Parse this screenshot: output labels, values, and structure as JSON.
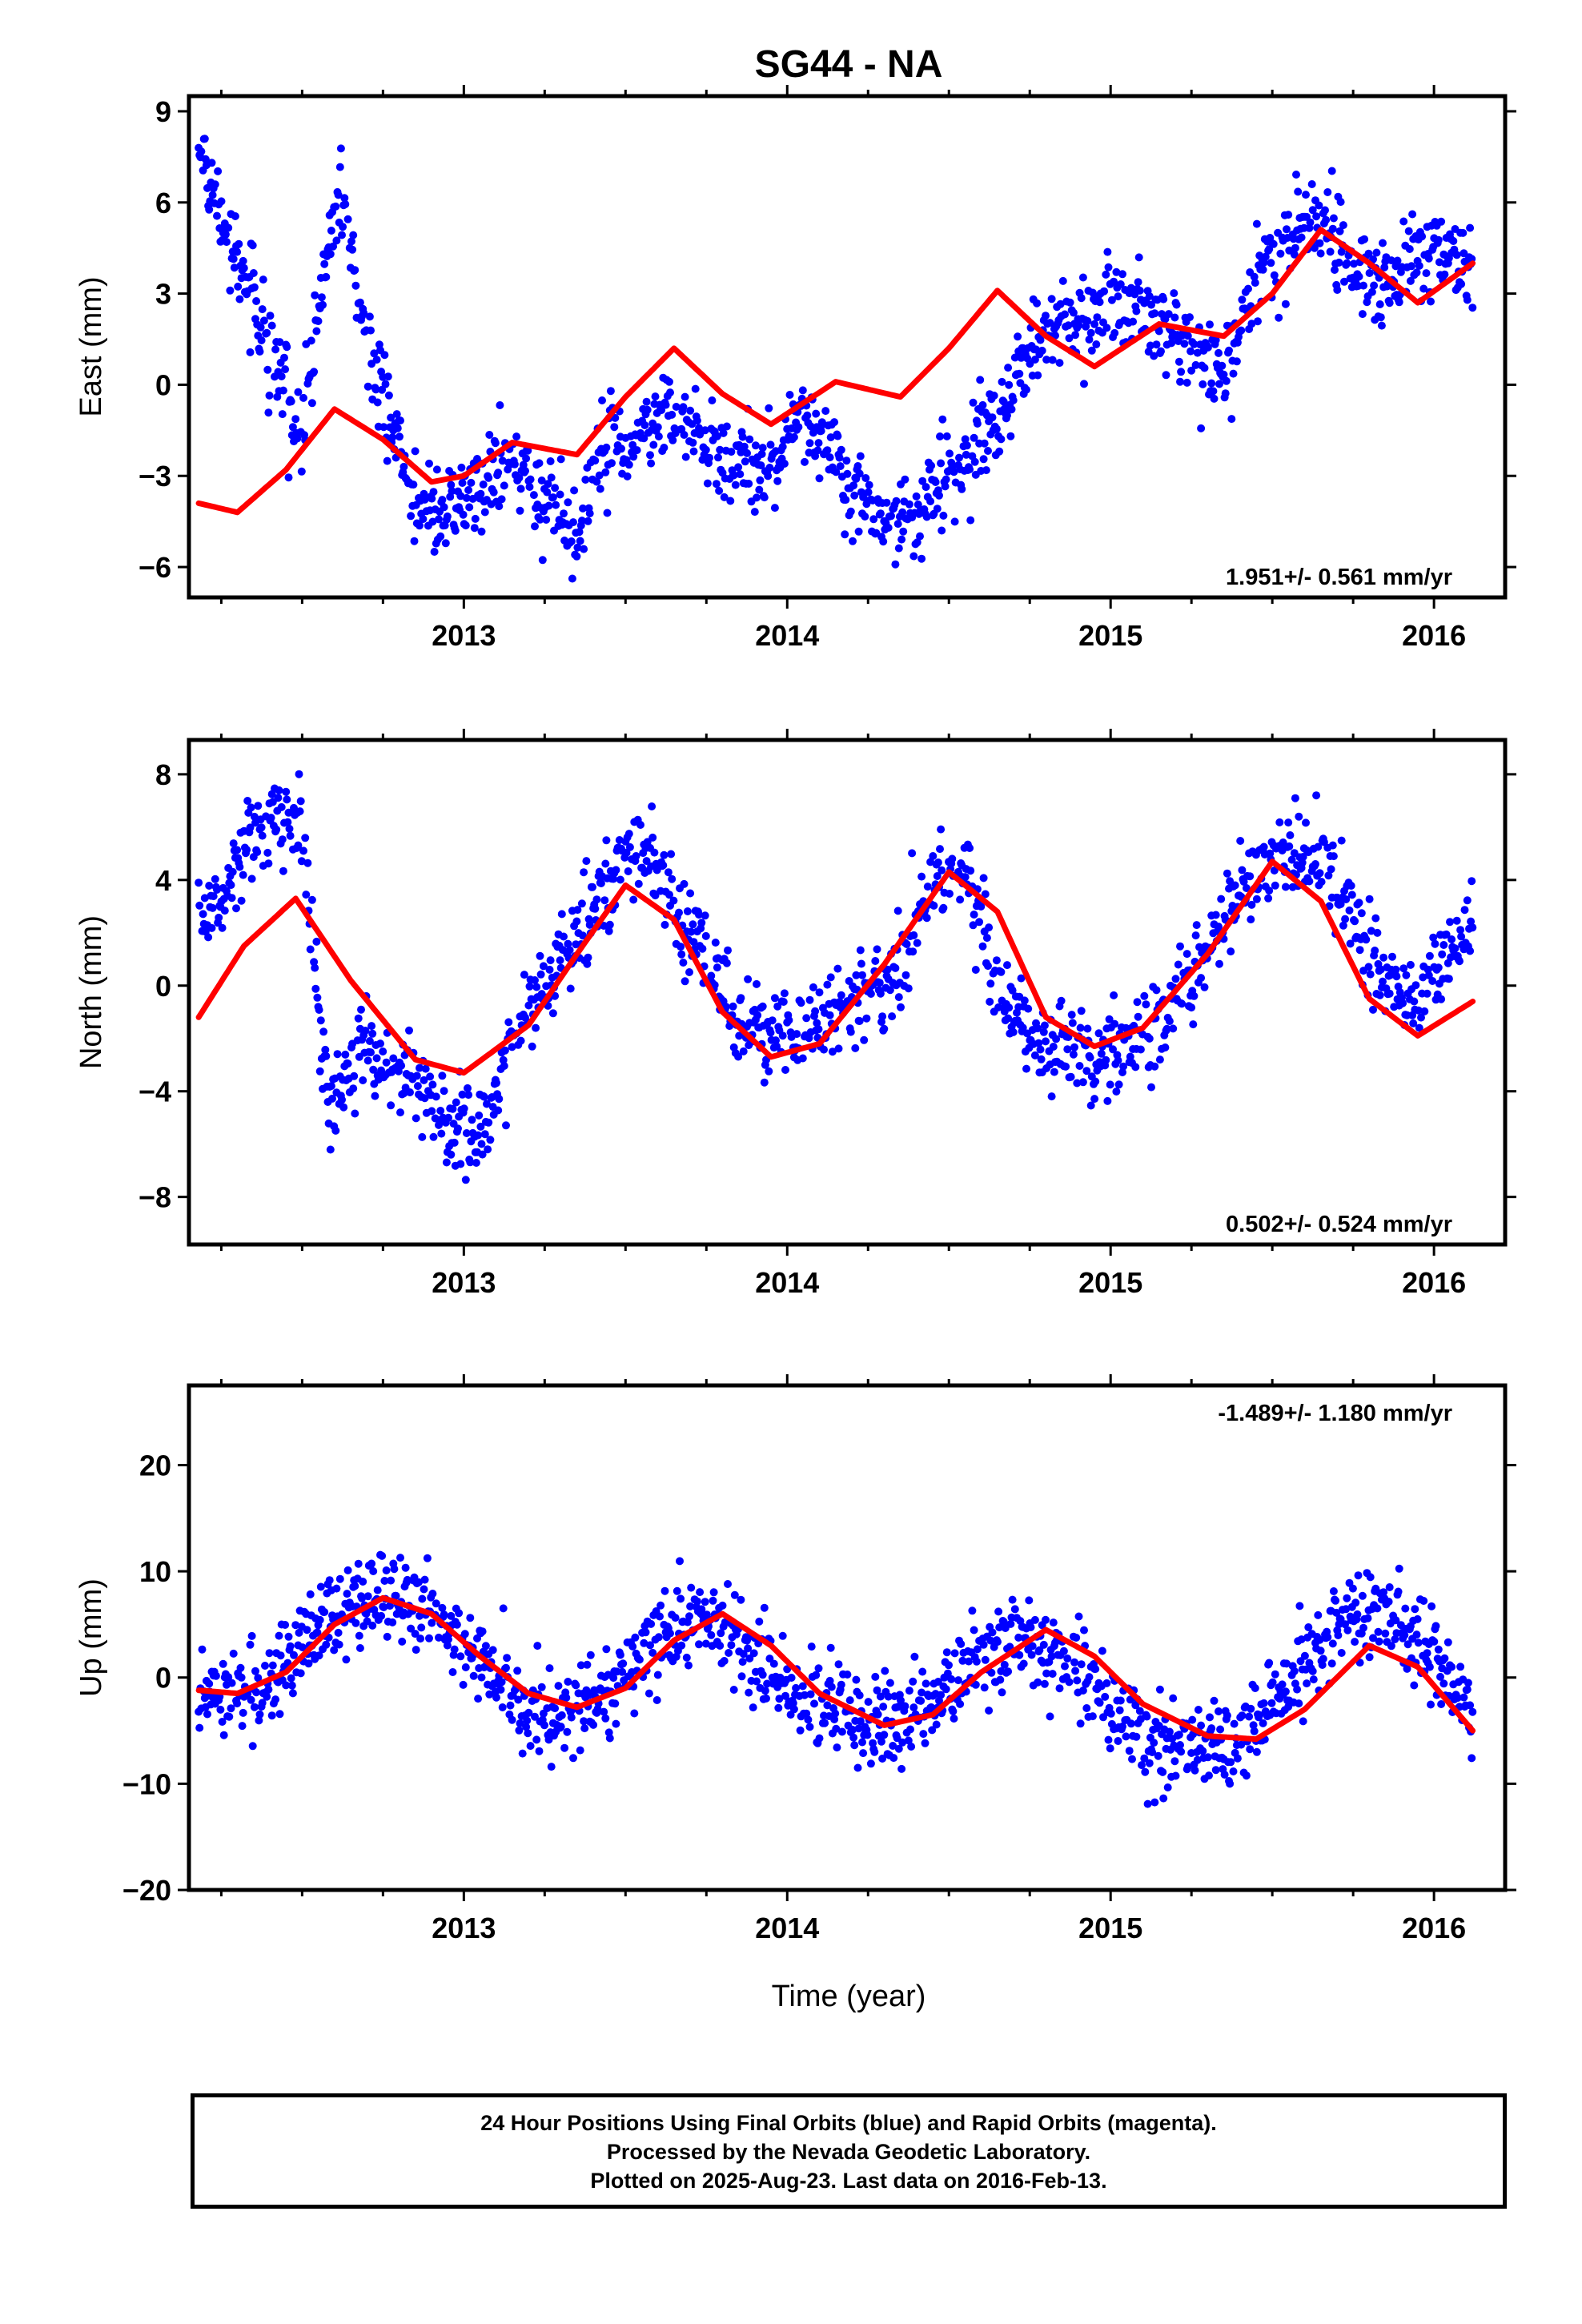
{
  "title": "SG44 - NA",
  "xlabel": "Time (year)",
  "footer": [
    "24 Hour Positions Using Final Orbits (blue) and Rapid Orbits (magenta).",
    "Processed by the Nevada Geodetic Laboratory.",
    "Plotted on 2025-Aug-23. Last data on 2016-Feb-13."
  ],
  "colors": {
    "points": "#0000ff",
    "fit": "#ff0000",
    "frame": "#000000"
  },
  "chart_data": [
    {
      "type": "scatter",
      "ylabel": "East (mm)",
      "ylim": [
        -7,
        9.5
      ],
      "xlim": [
        2012.15,
        2016.22
      ],
      "yticks": [
        -6,
        -3,
        0,
        3,
        6,
        9
      ],
      "xticks": [
        2013,
        2014,
        2015,
        2016
      ],
      "rate": "1.951+/- 0.561 mm/yr",
      "rate_position": "bottom-right",
      "series": [
        {
          "role": "points",
          "x": [
            2012.18,
            2012.25,
            2012.33,
            2012.42,
            2012.5,
            2012.58,
            2012.62,
            2012.67,
            2012.75,
            2012.85,
            2012.95,
            2013.05,
            2013.15,
            2013.25,
            2013.35,
            2013.45,
            2013.55,
            2013.65,
            2013.75,
            2013.85,
            2013.95,
            2014.05,
            2014.15,
            2014.25,
            2014.35,
            2014.45,
            2014.55,
            2014.65,
            2014.75,
            2014.85,
            2014.95,
            2015.05,
            2015.15,
            2015.25,
            2015.35,
            2015.45,
            2015.55,
            2015.65,
            2015.75,
            2015.85,
            2015.95,
            2016.05,
            2016.12
          ],
          "y": [
            7.8,
            5.2,
            3.5,
            0.5,
            -1.5,
            4.5,
            6.5,
            3.0,
            -0.5,
            -4.0,
            -4.2,
            -3.5,
            -2.5,
            -3.8,
            -4.5,
            -2.0,
            -1.5,
            -1.0,
            -2.0,
            -2.5,
            -2.8,
            -1.0,
            -2.5,
            -4.2,
            -4.5,
            -3.5,
            -2.5,
            -1.0,
            1.0,
            2.0,
            2.5,
            2.8,
            2.2,
            1.0,
            0.5,
            3.5,
            5.0,
            5.5,
            4.0,
            3.0,
            4.5,
            4.2,
            3.8
          ]
        },
        {
          "role": "fit",
          "x": [
            2012.18,
            2012.3,
            2012.45,
            2012.6,
            2012.75,
            2012.9,
            2013.0,
            2013.15,
            2013.35,
            2013.5,
            2013.65,
            2013.8,
            2013.95,
            2014.15,
            2014.35,
            2014.5,
            2014.65,
            2014.8,
            2014.95,
            2015.15,
            2015.35,
            2015.5,
            2015.65,
            2015.8,
            2015.95,
            2016.12
          ],
          "y": [
            -3.9,
            -4.2,
            -2.8,
            -0.8,
            -1.8,
            -3.2,
            -3.0,
            -1.9,
            -2.3,
            -0.4,
            1.2,
            -0.3,
            -1.3,
            0.1,
            -0.4,
            1.2,
            3.1,
            1.6,
            0.6,
            2.0,
            1.6,
            3.0,
            5.1,
            4.0,
            2.7,
            4.0
          ]
        }
      ]
    },
    {
      "type": "scatter",
      "ylabel": "North (mm)",
      "ylim": [
        -9.8,
        9.3
      ],
      "xlim": [
        2012.15,
        2016.22
      ],
      "yticks": [
        -8,
        -4,
        0,
        4,
        8
      ],
      "xticks": [
        2013,
        2014,
        2015,
        2016
      ],
      "rate": "0.502+/- 0.524 mm/yr",
      "rate_position": "bottom-right",
      "series": [
        {
          "role": "points",
          "x": [
            2012.18,
            2012.25,
            2012.33,
            2012.42,
            2012.5,
            2012.58,
            2012.65,
            2012.75,
            2012.85,
            2012.95,
            2013.05,
            2013.15,
            2013.25,
            2013.35,
            2013.45,
            2013.55,
            2013.65,
            2013.75,
            2013.85,
            2013.95,
            2014.05,
            2014.15,
            2014.25,
            2014.35,
            2014.45,
            2014.55,
            2014.65,
            2014.75,
            2014.85,
            2014.95,
            2015.05,
            2015.15,
            2015.25,
            2015.35,
            2015.45,
            2015.55,
            2015.65,
            2015.75,
            2015.85,
            2015.95,
            2016.05,
            2016.12
          ],
          "y": [
            2.5,
            3.5,
            5.5,
            6.5,
            6.2,
            -4.5,
            -2.5,
            -3.0,
            -3.5,
            -5.0,
            -6.0,
            -2.0,
            0.0,
            2.0,
            4.0,
            5.5,
            3.0,
            1.0,
            -1.5,
            -2.0,
            -1.5,
            -1.0,
            0.0,
            0.5,
            4.0,
            4.5,
            0.0,
            -2.0,
            -2.5,
            -2.8,
            -2.5,
            -1.5,
            0.5,
            2.5,
            4.5,
            5.0,
            4.5,
            3.0,
            0.0,
            -0.5,
            1.0,
            2.5
          ]
        },
        {
          "role": "fit",
          "x": [
            2012.18,
            2012.32,
            2012.48,
            2012.65,
            2012.85,
            2013.0,
            2013.2,
            2013.35,
            2013.5,
            2013.65,
            2013.8,
            2013.95,
            2014.1,
            2014.3,
            2014.5,
            2014.65,
            2014.8,
            2014.95,
            2015.1,
            2015.3,
            2015.5,
            2015.65,
            2015.8,
            2015.95,
            2016.12
          ],
          "y": [
            -1.2,
            1.5,
            3.3,
            0.2,
            -2.8,
            -3.3,
            -1.5,
            1.2,
            3.8,
            2.5,
            -1.0,
            -2.7,
            -2.2,
            0.8,
            4.3,
            2.8,
            -1.2,
            -2.3,
            -1.6,
            1.2,
            4.7,
            3.2,
            -0.5,
            -1.9,
            -0.6
          ]
        }
      ]
    },
    {
      "type": "scatter",
      "ylabel": "Up (mm)",
      "ylim": [
        -20,
        27.5
      ],
      "xlim": [
        2012.15,
        2016.22
      ],
      "yticks": [
        -20,
        -10,
        0,
        10,
        20
      ],
      "xticks": [
        2013,
        2014,
        2015,
        2016
      ],
      "rate": "-1.489+/- 1.180 mm/yr",
      "rate_position": "top-right",
      "series": [
        {
          "role": "points",
          "x": [
            2012.18,
            2012.25,
            2012.33,
            2012.42,
            2012.5,
            2012.58,
            2012.67,
            2012.75,
            2012.85,
            2012.95,
            2013.05,
            2013.15,
            2013.25,
            2013.35,
            2013.45,
            2013.55,
            2013.65,
            2013.75,
            2013.85,
            2013.95,
            2014.05,
            2014.15,
            2014.25,
            2014.35,
            2014.45,
            2014.55,
            2014.65,
            2014.75,
            2014.85,
            2014.95,
            2015.05,
            2015.15,
            2015.25,
            2015.35,
            2015.45,
            2015.55,
            2015.65,
            2015.75,
            2015.85,
            2015.95,
            2016.05,
            2016.12
          ],
          "y": [
            -2,
            -1,
            -1,
            0,
            3,
            5,
            7,
            8,
            7,
            5,
            2,
            -2,
            -4,
            -3,
            -1,
            2,
            4,
            5,
            3,
            0,
            -2,
            -3,
            -4,
            -4,
            -2,
            0,
            3,
            4,
            2,
            -2,
            -5,
            -7,
            -6,
            -8,
            -4,
            -1,
            4,
            7,
            6,
            3,
            0,
            -5
          ]
        },
        {
          "role": "fit",
          "x": [
            2012.18,
            2012.3,
            2012.45,
            2012.6,
            2012.75,
            2012.9,
            2013.05,
            2013.2,
            2013.35,
            2013.5,
            2013.65,
            2013.8,
            2013.95,
            2014.1,
            2014.3,
            2014.45,
            2014.6,
            2014.8,
            2014.95,
            2015.1,
            2015.3,
            2015.45,
            2015.6,
            2015.8,
            2015.95,
            2016.12
          ],
          "y": [
            -1.2,
            -1.5,
            0.5,
            5.0,
            7.5,
            6.0,
            2.0,
            -1.5,
            -2.8,
            -1.0,
            3.5,
            6.0,
            3.0,
            -1.5,
            -4.5,
            -3.5,
            0.5,
            4.5,
            2.0,
            -2.5,
            -5.5,
            -5.8,
            -3.0,
            3.0,
            1.0,
            -5.0
          ]
        }
      ]
    }
  ]
}
